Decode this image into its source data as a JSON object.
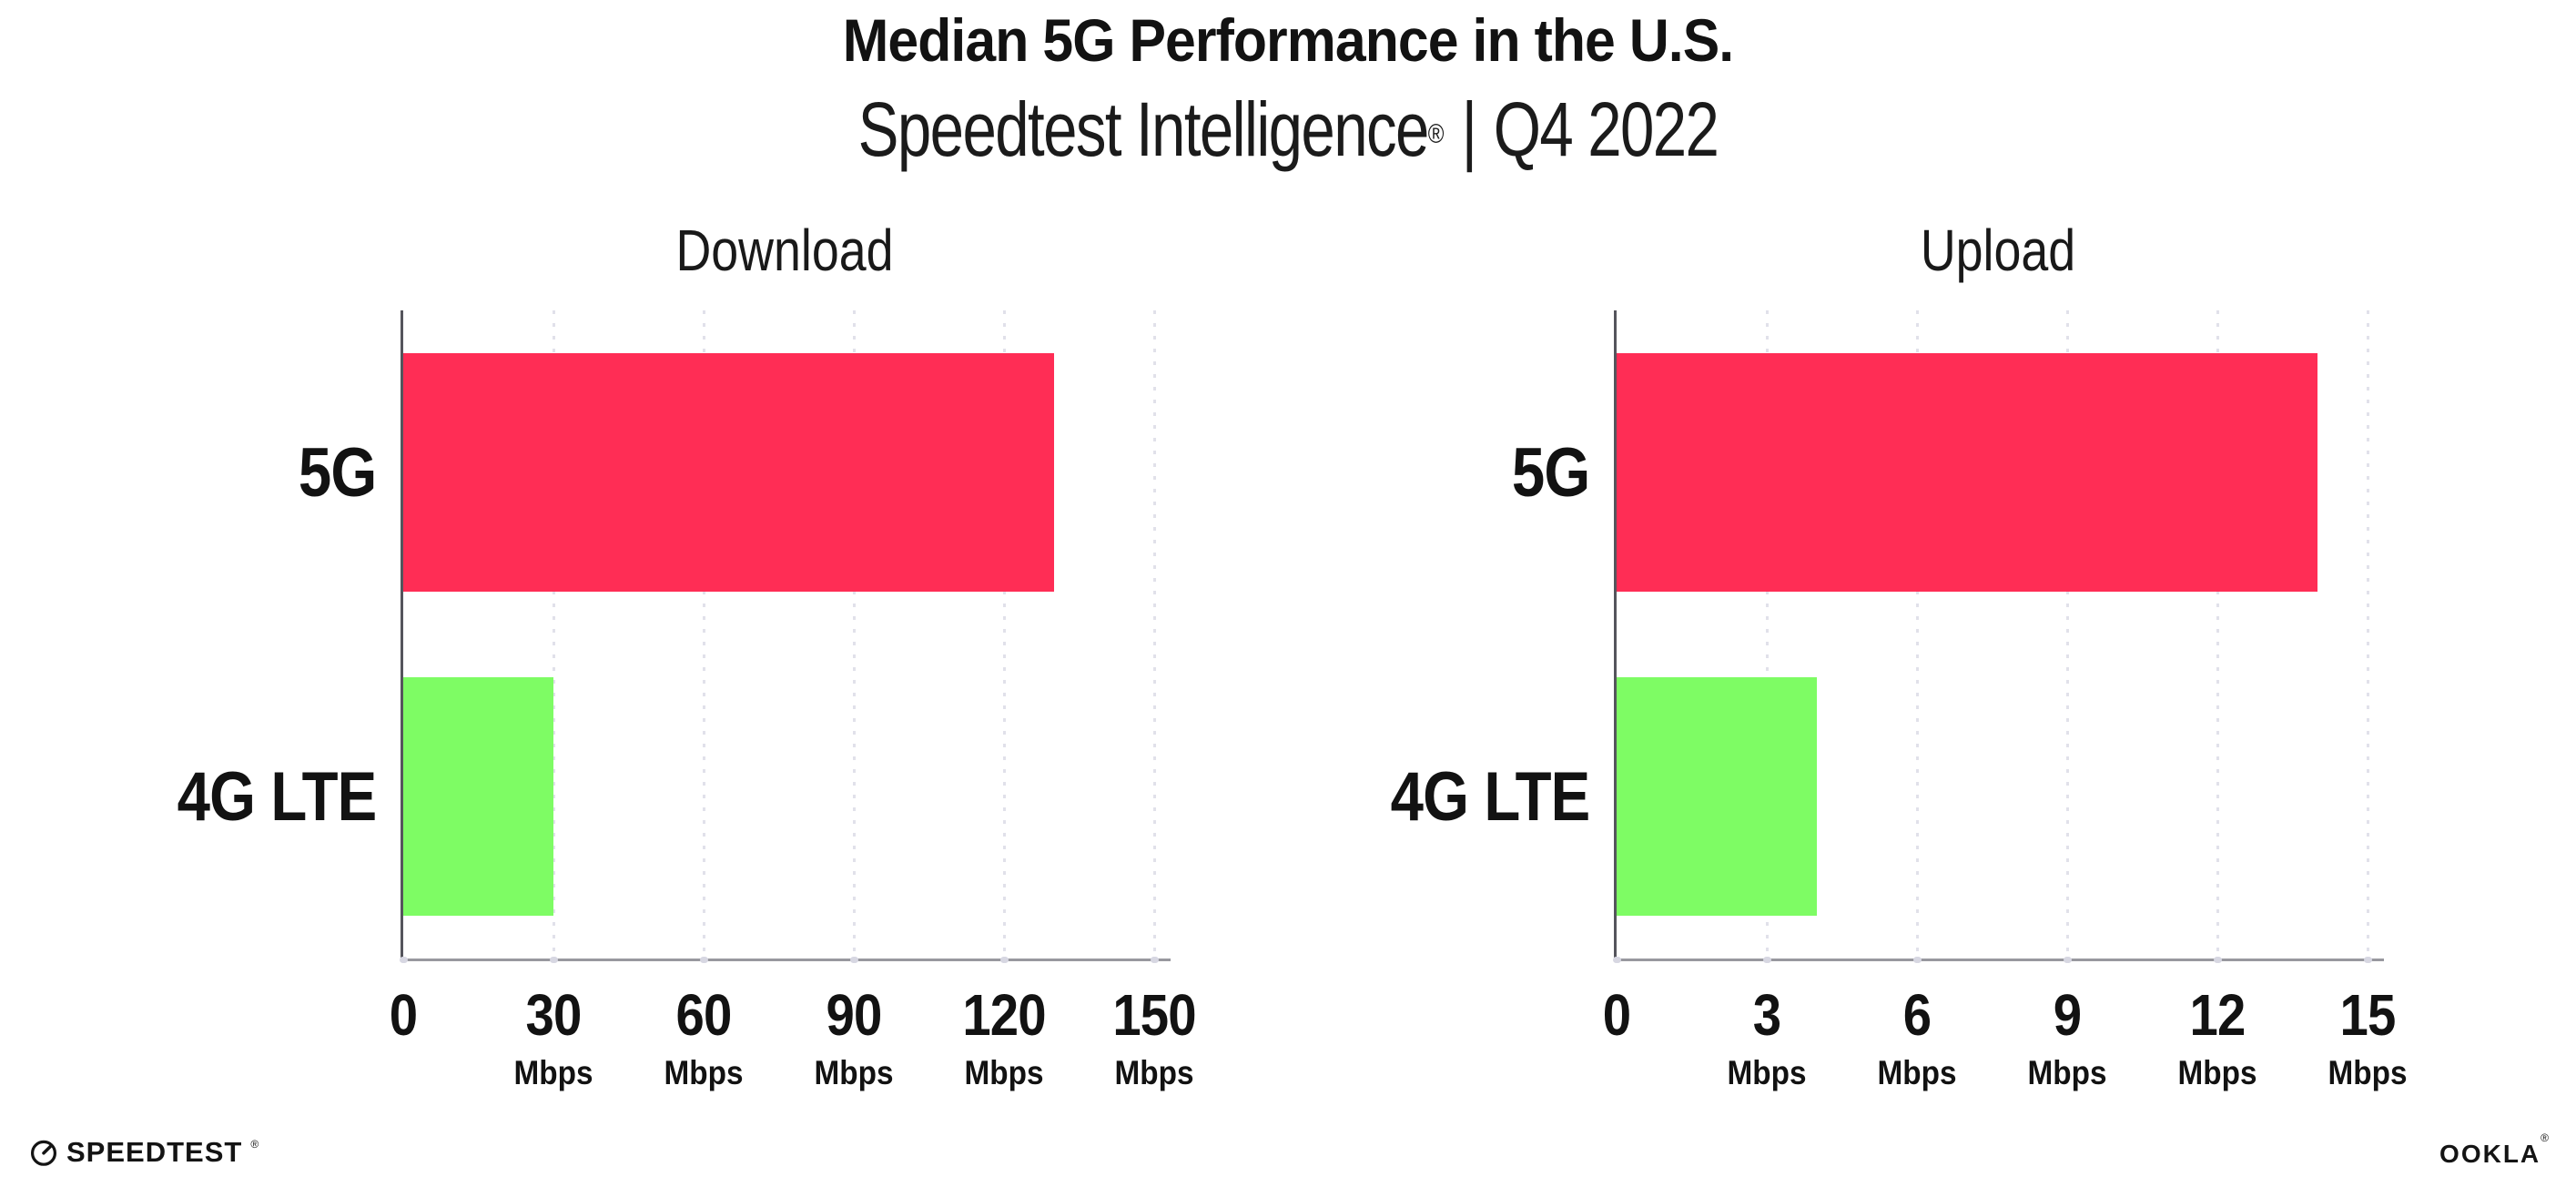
{
  "header": {
    "title": "Median 5G Performance in the U.S.",
    "subtitle_product": "Speedtest Intelligence",
    "subtitle_reg": "®",
    "subtitle_separator": "|",
    "subtitle_period": "Q4 2022"
  },
  "chart_data": [
    {
      "type": "bar",
      "orientation": "horizontal",
      "title": "Download",
      "categories": [
        "5G",
        "4G LTE"
      ],
      "values": [
        130,
        30
      ],
      "unit": "Mbps",
      "xlim": [
        0,
        150
      ],
      "xticks": [
        0,
        30,
        60,
        90,
        120,
        150
      ],
      "bar_colors": [
        "#ff2d55",
        "#7efc64"
      ],
      "grid": "dotted-vertical-gridlines",
      "legend_position": "none"
    },
    {
      "type": "bar",
      "orientation": "horizontal",
      "title": "Upload",
      "categories": [
        "5G",
        "4G LTE"
      ],
      "values": [
        14,
        4
      ],
      "unit": "Mbps",
      "xlim": [
        0,
        15
      ],
      "xticks": [
        0,
        3,
        6,
        9,
        12,
        15
      ],
      "bar_colors": [
        "#ff2d55",
        "#7efc64"
      ],
      "grid": "dotted-vertical-gridlines",
      "legend_position": "none"
    }
  ],
  "colors": {
    "bar_5g": "#ff2d55",
    "bar_4g_lte": "#7efc64",
    "x_axis_line": "#98989f",
    "y_axis_line": "#55555c",
    "grid_dots": "#e1e1ea",
    "axis_tick_dots": "#d7d7e2",
    "text": "#121212",
    "background": "#ffffff"
  },
  "footer": {
    "speedtest_logo_text": "SPEEDTEST",
    "speedtest_reg": "®",
    "ookla_logo_text": "OOKLA",
    "ookla_reg": "®"
  }
}
